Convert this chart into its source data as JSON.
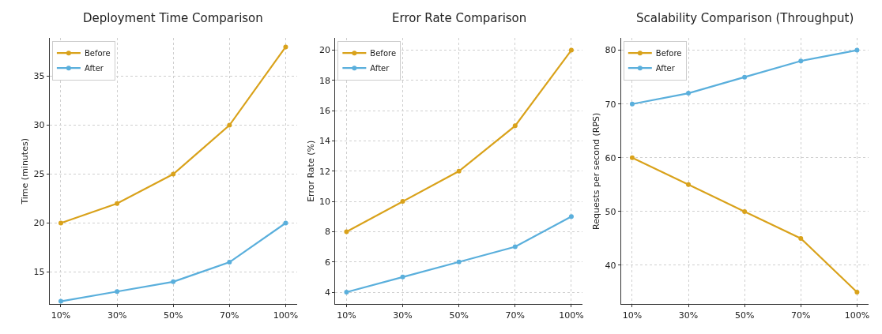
{
  "chart_data": [
    {
      "type": "line",
      "title": "Deployment Time Comparison",
      "ylabel": "Time (minutes)",
      "categories": [
        "10%",
        "30%",
        "50%",
        "70%",
        "100%"
      ],
      "series": [
        {
          "name": "Before",
          "color": "#d9a21b",
          "values": [
            20,
            22,
            25,
            30,
            38
          ]
        },
        {
          "name": "After",
          "color": "#5aafdc",
          "values": [
            12,
            13,
            14,
            16,
            20
          ]
        }
      ],
      "ylim": [
        11.7,
        38.9
      ],
      "yticks": [
        15,
        20,
        25,
        30,
        35
      ],
      "grid": true,
      "legend": "top left",
      "marker": "circle",
      "line_style": "solid"
    },
    {
      "type": "line",
      "title": "Error Rate Comparison",
      "ylabel": "Error Rate (%)",
      "categories": [
        "10%",
        "30%",
        "50%",
        "70%",
        "100%"
      ],
      "series": [
        {
          "name": "Before",
          "color": "#d9a21b",
          "values": [
            8,
            10,
            12,
            15,
            20
          ]
        },
        {
          "name": "After",
          "color": "#5aafdc",
          "values": [
            4,
            5,
            6,
            7,
            9
          ]
        }
      ],
      "ylim": [
        3.2,
        20.8
      ],
      "yticks": [
        4,
        6,
        8,
        10,
        12,
        14,
        16,
        18,
        20
      ],
      "grid": true,
      "legend": "top left",
      "marker": "circle",
      "line_style": "solid"
    },
    {
      "type": "line",
      "title": "Scalability Comparison (Throughput)",
      "ylabel": "Requests per second (RPS)",
      "categories": [
        "10%",
        "30%",
        "50%",
        "70%",
        "100%"
      ],
      "series": [
        {
          "name": "Before",
          "color": "#d9a21b",
          "values": [
            60,
            55,
            50,
            45,
            35
          ]
        },
        {
          "name": "After",
          "color": "#5aafdc",
          "values": [
            70,
            72,
            75,
            78,
            80
          ]
        }
      ],
      "ylim": [
        32.75,
        82.25
      ],
      "yticks": [
        40,
        50,
        60,
        70,
        80
      ],
      "grid": true,
      "legend": "top left",
      "marker": "circle",
      "line_style": "solid"
    }
  ]
}
